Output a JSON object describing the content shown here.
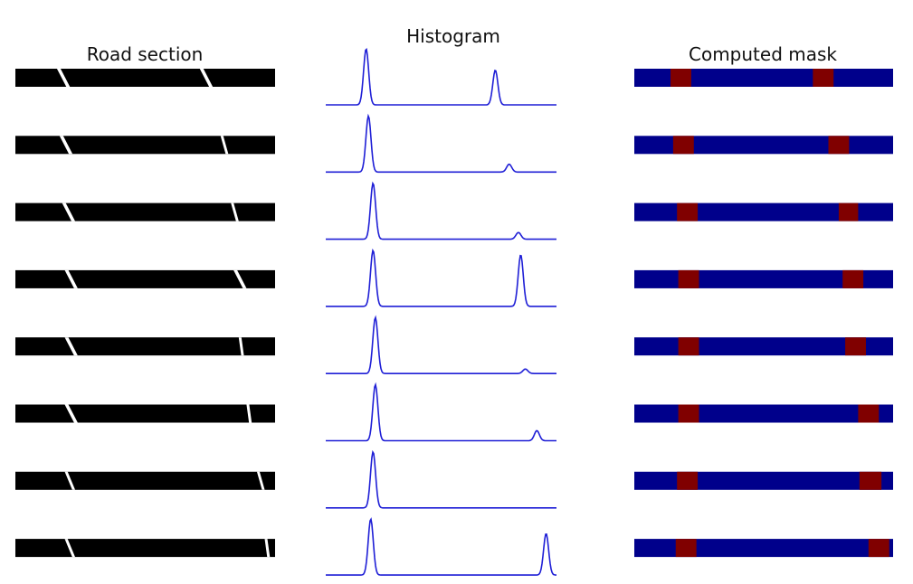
{
  "titles": {
    "road": "Road section",
    "hist": "Histogram",
    "mask": "Computed mask"
  },
  "colors": {
    "road_bg": "#000000",
    "road_marking": "#ffffff",
    "hist_line": "#1f1fd6",
    "mask_bg": "#00008b",
    "mask_lane": "#800000"
  },
  "chart_data": {
    "type": "figure-grid",
    "row_count": 8,
    "road_markings": [
      [
        [
          0.16,
          0.21
        ],
        [
          0.71,
          0.76
        ]
      ],
      [
        [
          0.17,
          0.22
        ],
        [
          0.79,
          0.82
        ]
      ],
      [
        [
          0.18,
          0.23
        ],
        [
          0.83,
          0.86
        ]
      ],
      [
        [
          0.19,
          0.24
        ],
        [
          0.84,
          0.89
        ]
      ],
      [
        [
          0.19,
          0.24
        ],
        [
          0.86,
          0.88
        ]
      ],
      [
        [
          0.19,
          0.24
        ],
        [
          0.89,
          0.91
        ]
      ],
      [
        [
          0.19,
          0.23
        ],
        [
          0.93,
          0.96
        ]
      ],
      [
        [
          0.19,
          0.23
        ],
        [
          0.96,
          0.98
        ]
      ]
    ],
    "histograms": [
      {
        "peaks": [
          {
            "x": 0.175,
            "h": 1.0
          },
          {
            "x": 0.735,
            "h": 0.62
          }
        ]
      },
      {
        "peaks": [
          {
            "x": 0.185,
            "h": 1.0
          },
          {
            "x": 0.795,
            "h": 0.14
          }
        ]
      },
      {
        "peaks": [
          {
            "x": 0.205,
            "h": 1.0
          },
          {
            "x": 0.835,
            "h": 0.12
          }
        ]
      },
      {
        "peaks": [
          {
            "x": 0.205,
            "h": 1.0
          },
          {
            "x": 0.845,
            "h": 0.92
          }
        ]
      },
      {
        "peaks": [
          {
            "x": 0.215,
            "h": 1.0
          },
          {
            "x": 0.865,
            "h": 0.08
          }
        ]
      },
      {
        "peaks": [
          {
            "x": 0.215,
            "h": 1.0
          },
          {
            "x": 0.915,
            "h": 0.18
          }
        ]
      },
      {
        "peaks": [
          {
            "x": 0.205,
            "h": 1.0
          },
          {
            "x": 0.935,
            "h": 0.0
          }
        ]
      },
      {
        "peaks": [
          {
            "x": 0.195,
            "h": 1.0
          },
          {
            "x": 0.955,
            "h": 0.74
          }
        ]
      }
    ],
    "masks": [
      [
        [
          0.14,
          0.22
        ],
        [
          0.69,
          0.77
        ]
      ],
      [
        [
          0.15,
          0.23
        ],
        [
          0.75,
          0.83
        ]
      ],
      [
        [
          0.165,
          0.245
        ],
        [
          0.79,
          0.865
        ]
      ],
      [
        [
          0.17,
          0.25
        ],
        [
          0.805,
          0.885
        ]
      ],
      [
        [
          0.17,
          0.25
        ],
        [
          0.815,
          0.895
        ]
      ],
      [
        [
          0.17,
          0.25
        ],
        [
          0.865,
          0.945
        ]
      ],
      [
        [
          0.165,
          0.245
        ],
        [
          0.87,
          0.955
        ]
      ],
      [
        [
          0.16,
          0.24
        ],
        [
          0.905,
          0.985
        ]
      ]
    ]
  }
}
